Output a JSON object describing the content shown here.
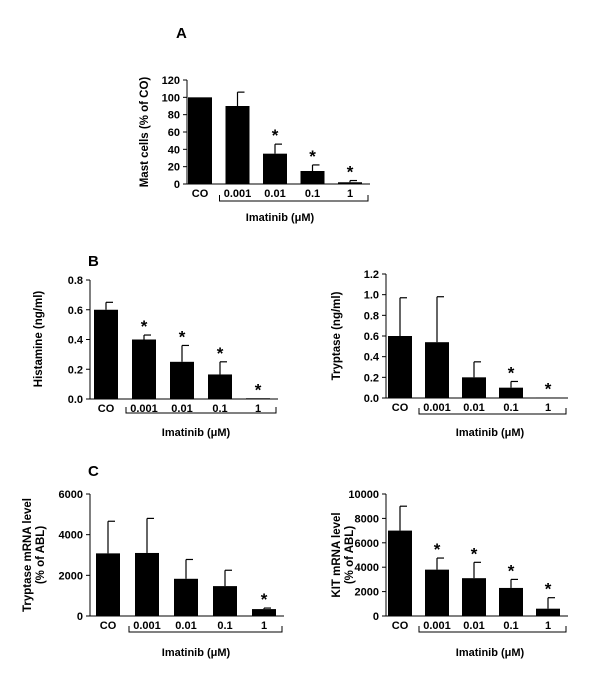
{
  "figure": {
    "panel_letters": [
      "A",
      "B",
      "C"
    ]
  },
  "chart_data": [
    {
      "id": "A",
      "type": "bar",
      "title": "",
      "ylabel": "Mast cells (% of CO)",
      "xlabel": "",
      "categories": [
        "CO",
        "0.001",
        "0.01",
        "0.1",
        "1"
      ],
      "values": [
        100,
        90,
        35,
        15,
        2
      ],
      "errors": [
        0,
        16,
        11,
        7,
        2
      ],
      "significant": [
        false,
        false,
        true,
        true,
        true
      ],
      "ylim": [
        0,
        120
      ],
      "yticks": [
        "0",
        "20",
        "40",
        "60",
        "80",
        "100",
        "120"
      ],
      "bracket_label": "Imatinib (μM)",
      "star": "*",
      "grid": false
    },
    {
      "id": "B-left",
      "type": "bar",
      "title": "",
      "ylabel": "Histamine (ng/ml)",
      "xlabel": "",
      "categories": [
        "CO",
        "0.001",
        "0.01",
        "0.1",
        "1"
      ],
      "values": [
        0.6,
        0.4,
        0.25,
        0.165,
        0.005
      ],
      "errors": [
        0.05,
        0.03,
        0.11,
        0.085,
        0
      ],
      "significant": [
        false,
        true,
        true,
        true,
        true
      ],
      "ylim": [
        0,
        0.8
      ],
      "yticks": [
        "0.0",
        "0.2",
        "0.4",
        "0.6",
        "0.8"
      ],
      "bracket_label": "Imatinib (μM)",
      "star": "*",
      "grid": false
    },
    {
      "id": "B-right",
      "type": "bar",
      "title": "",
      "ylabel": "Tryptase (ng/ml)",
      "xlabel": "",
      "categories": [
        "CO",
        "0.001",
        "0.01",
        "0.1",
        "1"
      ],
      "values": [
        0.6,
        0.54,
        0.2,
        0.1,
        0.005
      ],
      "errors": [
        0.37,
        0.44,
        0.15,
        0.06,
        0
      ],
      "significant": [
        false,
        false,
        false,
        true,
        true
      ],
      "ylim": [
        0,
        1.2
      ],
      "yticks": [
        "0.0",
        "0.2",
        "0.4",
        "0.6",
        "0.8",
        "1.0",
        "1.2"
      ],
      "bracket_label": "Imatinib (μM)",
      "star": "*",
      "grid": false
    },
    {
      "id": "C-left",
      "type": "bar",
      "title": "",
      "ylabel": "Tryptase mRNA level (% of ABL)",
      "ylabel_lines": [
        "Tryptase mRNA level",
        "(% of ABL)"
      ],
      "xlabel": "",
      "categories": [
        "CO",
        "0.001",
        "0.01",
        "0.1",
        "1"
      ],
      "values": [
        3080,
        3100,
        1830,
        1470,
        340
      ],
      "errors": [
        1580,
        1700,
        950,
        780,
        50
      ],
      "significant": [
        false,
        false,
        false,
        false,
        true
      ],
      "ylim": [
        0,
        6000
      ],
      "yticks": [
        "0",
        "2000",
        "4000",
        "6000"
      ],
      "bracket_label": "Imatinib (μM)",
      "star": "*",
      "grid": false
    },
    {
      "id": "C-right",
      "type": "bar",
      "title": "",
      "ylabel": "KIT mRNA level (% of ABL)",
      "ylabel_lines": [
        "KIT mRNA level",
        "(% of ABL)"
      ],
      "xlabel": "",
      "categories": [
        "CO",
        "0.001",
        "0.01",
        "0.1",
        "1"
      ],
      "values": [
        7000,
        3800,
        3100,
        2300,
        600
      ],
      "errors": [
        2000,
        950,
        1300,
        700,
        900
      ],
      "significant": [
        false,
        true,
        true,
        true,
        true
      ],
      "ylim": [
        0,
        10000
      ],
      "yticks": [
        "0",
        "2000",
        "4000",
        "6000",
        "8000",
        "10000"
      ],
      "bracket_label": "Imatinib (μM)",
      "star": "*",
      "grid": false
    }
  ]
}
